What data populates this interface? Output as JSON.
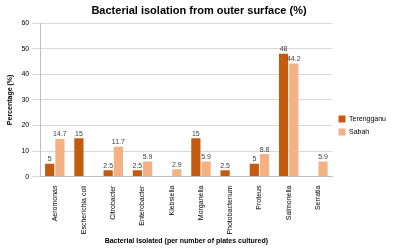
{
  "chart_data": {
    "type": "bar",
    "title": "Bacterial isolation from outer surface (%)",
    "x_label": "Bacterial Isolated (per number of plates cultured)",
    "y_label": "Percentage (%)",
    "categories": [
      "Aeromonas",
      "Escherichia coli",
      "Citrobacter",
      "Enterobacter",
      "Klebsiella",
      "Morganella",
      "Photobacterium",
      "Proteus",
      "Salmonella",
      "Serratia"
    ],
    "series": [
      {
        "name": "Terengganu",
        "color": "#c55a11",
        "values": [
          5,
          15,
          2.5,
          2.5,
          null,
          15,
          2.5,
          5,
          48,
          null
        ]
      },
      {
        "name": "Sabah",
        "color": "#f4b183",
        "values": [
          14.7,
          null,
          11.7,
          5.9,
          2.9,
          5.9,
          null,
          8.8,
          44.2,
          5.9
        ]
      }
    ],
    "ylim": [
      0,
      60
    ],
    "yticks": [
      0,
      10,
      20,
      30,
      40,
      50,
      60
    ],
    "grid": true,
    "legend": "right",
    "data_labels": true
  }
}
